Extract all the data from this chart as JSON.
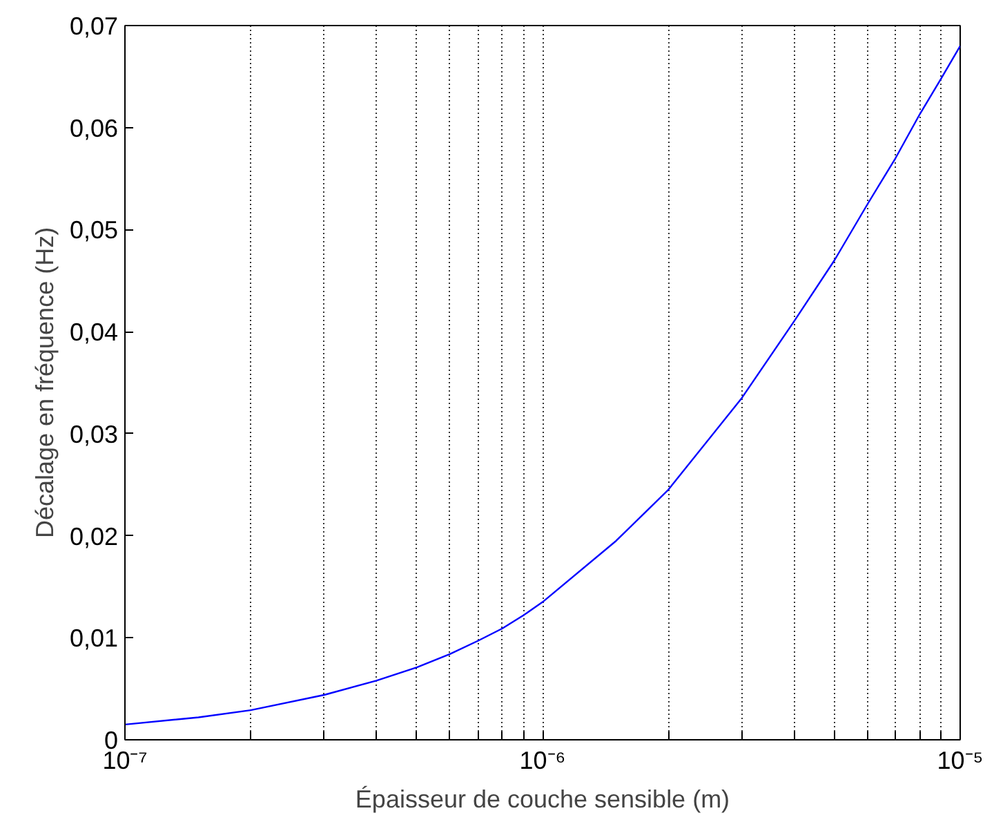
{
  "chart_data": {
    "type": "line",
    "xlabel": "Épaisseur de couche sensible (m)",
    "ylabel": "Décalage en fréquence (Hz)",
    "log": "x",
    "grid": "x",
    "line_style": "solid",
    "x": [
      1e-07,
      1.5e-07,
      2e-07,
      3e-07,
      4e-07,
      5e-07,
      6e-07,
      7e-07,
      8e-07,
      9e-07,
      1e-06,
      1.5e-06,
      2e-06,
      3e-06,
      4e-06,
      5e-06,
      6e-06,
      7e-06,
      8e-06,
      9e-06,
      1e-05
    ],
    "series": [
      {
        "color": "#0000ff",
        "values": [
          0.0015,
          0.0022,
          0.0029,
          0.0044,
          0.0058,
          0.0071,
          0.0084,
          0.0097,
          0.0109,
          0.0122,
          0.0135,
          0.0195,
          0.0245,
          0.0335,
          0.041,
          0.047,
          0.0525,
          0.057,
          0.0613,
          0.0648,
          0.068
        ]
      }
    ],
    "xlim": [
      1e-07,
      1e-05
    ],
    "ylim": [
      0,
      0.07
    ],
    "xticks": [
      {
        "value": 1e-07,
        "label": "10⁻⁷"
      },
      {
        "value": 2e-07,
        "label": null
      },
      {
        "value": 3e-07,
        "label": null
      },
      {
        "value": 4e-07,
        "label": null
      },
      {
        "value": 5e-07,
        "label": null
      },
      {
        "value": 6e-07,
        "label": null
      },
      {
        "value": 7e-07,
        "label": null
      },
      {
        "value": 8e-07,
        "label": null
      },
      {
        "value": 9e-07,
        "label": null
      },
      {
        "value": 1e-06,
        "label": "10⁻⁶"
      },
      {
        "value": 2e-06,
        "label": null
      },
      {
        "value": 3e-06,
        "label": null
      },
      {
        "value": 4e-06,
        "label": null
      },
      {
        "value": 5e-06,
        "label": null
      },
      {
        "value": 6e-06,
        "label": null
      },
      {
        "value": 7e-06,
        "label": null
      },
      {
        "value": 8e-06,
        "label": null
      },
      {
        "value": 9e-06,
        "label": null
      },
      {
        "value": 1e-05,
        "label": "10⁻⁵"
      }
    ],
    "yticks": [
      0,
      {
        "value": 0.01,
        "label": "0,01"
      },
      {
        "value": 0.02,
        "label": "0,02"
      },
      {
        "value": 0.03,
        "label": "0,03"
      },
      {
        "value": 0.04,
        "label": "0,04"
      },
      {
        "value": 0.05,
        "label": "0,05"
      },
      {
        "value": 0.06,
        "label": "0,06"
      },
      {
        "value": 0.07,
        "label": "0,07"
      }
    ]
  }
}
